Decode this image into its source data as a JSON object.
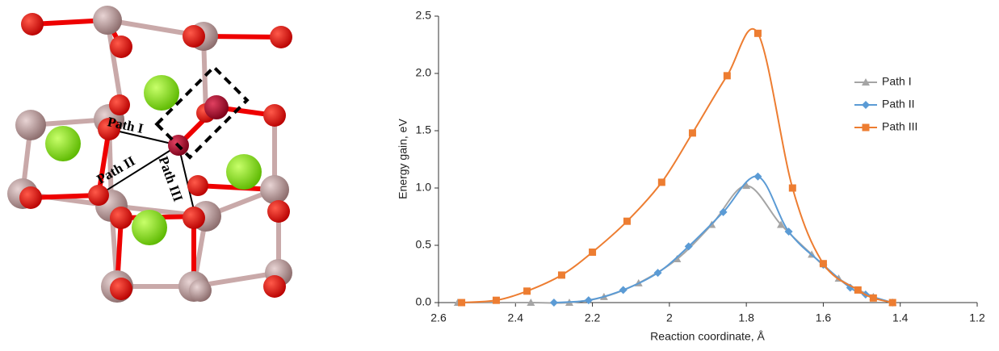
{
  "structure": {
    "labels": [
      "Path I",
      "Path II",
      "Path III"
    ]
  },
  "chart_data": {
    "type": "line",
    "x_label": "Reaction coordinate, Å",
    "y_label": "Energy gain, eV",
    "xlim": [
      2.6,
      1.2
    ],
    "ylim": [
      0,
      2.5
    ],
    "xticks": [
      2.6,
      2.4,
      2.2,
      2,
      1.8,
      1.6,
      1.4,
      1.2
    ],
    "yticks": [
      {
        "value": 0,
        "label": "0.0"
      },
      0.5,
      {
        "value": 1,
        "label": "1.0"
      },
      1.5,
      {
        "value": 2,
        "label": "2.0"
      },
      2.5
    ],
    "grid": false,
    "legend": "right",
    "series": [
      {
        "name": "Path I",
        "color": "#a5a5a5",
        "marker": "triangle",
        "x": [
          2.55,
          2.36,
          2.26,
          2.17,
          2.08,
          1.98,
          1.89,
          1.8,
          1.71,
          1.63,
          1.56,
          1.47,
          1.42
        ],
        "values": [
          0.0,
          0.0,
          0.0,
          0.05,
          0.17,
          0.38,
          0.68,
          1.02,
          0.68,
          0.42,
          0.21,
          0.05,
          0.0
        ]
      },
      {
        "name": "Path II",
        "color": "#5b9bd5",
        "marker": "diamond",
        "x": [
          2.3,
          2.21,
          2.12,
          2.03,
          1.95,
          1.86,
          1.77,
          1.69,
          1.6,
          1.53,
          1.49,
          1.42
        ],
        "values": [
          0.0,
          0.02,
          0.11,
          0.26,
          0.49,
          0.79,
          1.1,
          0.62,
          0.33,
          0.13,
          0.07,
          0.0
        ]
      },
      {
        "name": "Path III",
        "color": "#ed7d31",
        "marker": "square",
        "x": [
          2.54,
          2.45,
          2.37,
          2.28,
          2.2,
          2.11,
          2.02,
          1.94,
          1.85,
          1.77,
          1.68,
          1.6,
          1.51,
          1.47,
          1.42
        ],
        "values": [
          0.0,
          0.02,
          0.1,
          0.24,
          0.44,
          0.71,
          1.05,
          1.48,
          1.98,
          2.35,
          1.0,
          0.34,
          0.11,
          0.04,
          0.0
        ]
      }
    ]
  }
}
